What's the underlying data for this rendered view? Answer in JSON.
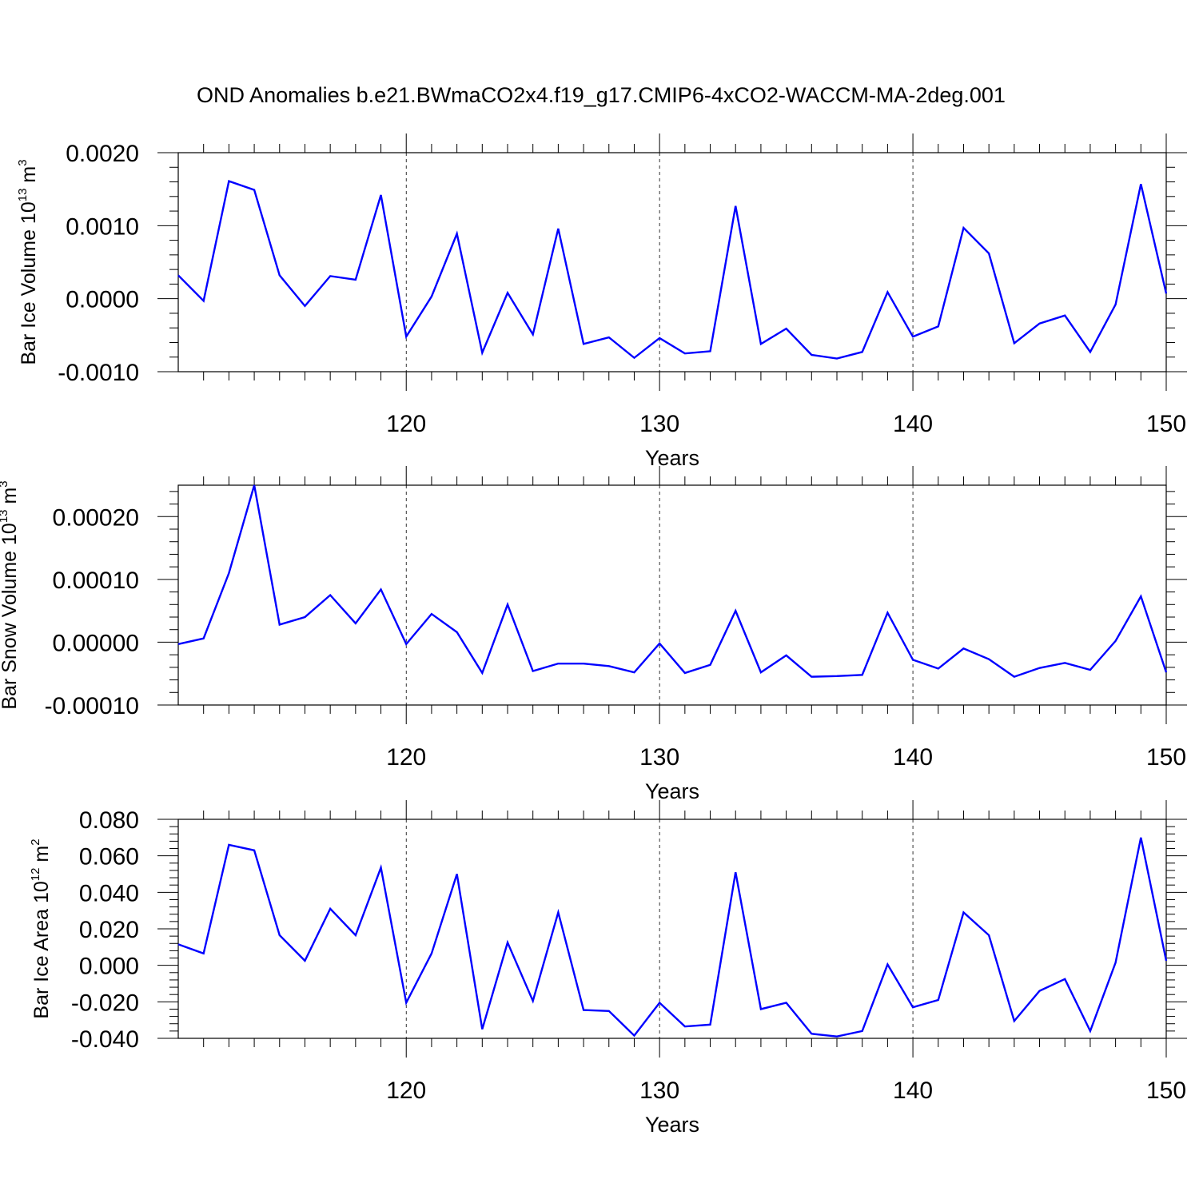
{
  "title": "OND Anomalies b.e21.BWmaCO2x4.f19_g17.CMIP6-4xCO2-WACCM-MA-2deg.001",
  "colors": {
    "line": "#0000ff",
    "axis": "#000000",
    "grid": "#000000"
  },
  "chart_data": [
    {
      "type": "line",
      "ylabel": {
        "text": "Bar Ice Volume 10",
        "sup1": "13",
        "mid": " m",
        "sup2": "3"
      },
      "xlabel": "Years",
      "xlim": [
        111,
        150
      ],
      "ylim": [
        -0.001,
        0.002
      ],
      "yticks": [
        -0.001,
        0.0,
        0.001,
        0.002
      ],
      "ytick_labels": [
        "-0.0010",
        "0.0000",
        "0.0010",
        "0.0020"
      ],
      "xticks": [
        120,
        130,
        140,
        150
      ],
      "xtick_labels": [
        "120",
        "130",
        "140",
        "150"
      ],
      "grid_x": [
        120,
        130,
        140
      ],
      "series": [
        {
          "x": [
            111,
            112,
            113,
            114,
            115,
            116,
            117,
            118,
            119,
            120,
            121,
            122,
            123,
            124,
            125,
            126,
            127,
            128,
            129,
            130,
            131,
            132,
            133,
            134,
            135,
            136,
            137,
            138,
            139,
            140,
            141,
            142,
            143,
            144,
            145,
            146,
            147,
            148,
            149,
            150
          ],
          "values": [
            0.00032,
            -3e-05,
            0.00161,
            0.00149,
            0.00032,
            -0.0001,
            0.00031,
            0.00026,
            0.00142,
            -0.00052,
            3e-05,
            0.00089,
            -0.00074,
            8e-05,
            -0.00049,
            0.00096,
            -0.00062,
            -0.00053,
            -0.00081,
            -0.00054,
            -0.00075,
            -0.00072,
            0.00127,
            -0.00062,
            -0.00041,
            -0.00077,
            -0.00082,
            -0.00073,
            9e-05,
            -0.00052,
            -0.00038,
            0.00097,
            0.00062,
            -0.00061,
            -0.00034,
            -0.00023,
            -0.00073,
            -8e-05,
            0.00157,
            7e-05
          ]
        }
      ]
    },
    {
      "type": "line",
      "ylabel": {
        "text": "Bar Snow Volume 10",
        "sup1": "13",
        "mid": " m",
        "sup2": "3"
      },
      "xlabel": "Years",
      "xlim": [
        111,
        150
      ],
      "ylim": [
        -0.0001,
        0.00025
      ],
      "yticks": [
        -0.0001,
        0.0,
        0.0001,
        0.0002
      ],
      "ytick_labels": [
        "-0.00010",
        "0.00000",
        "0.00010",
        "0.00020"
      ],
      "xticks": [
        120,
        130,
        140,
        150
      ],
      "xtick_labels": [
        "120",
        "130",
        "140",
        "150"
      ],
      "grid_x": [
        120,
        130,
        140
      ],
      "series": [
        {
          "x": [
            111,
            112,
            113,
            114,
            115,
            116,
            117,
            118,
            119,
            120,
            121,
            122,
            123,
            124,
            125,
            126,
            127,
            128,
            129,
            130,
            131,
            132,
            133,
            134,
            135,
            136,
            137,
            138,
            139,
            140,
            141,
            142,
            143,
            144,
            145,
            146,
            147,
            148,
            149,
            150
          ],
          "values": [
            -3e-06,
            6e-06,
            0.00011,
            0.00025,
            2.8e-05,
            4e-05,
            7.5e-05,
            3e-05,
            8.4e-05,
            -3e-06,
            4.5e-05,
            1.6e-05,
            -4.9e-05,
            6e-05,
            -4.6e-05,
            -3.4e-05,
            -3.4e-05,
            -3.8e-05,
            -4.8e-05,
            -2e-06,
            -4.9e-05,
            -3.6e-05,
            5e-05,
            -4.8e-05,
            -2.1e-05,
            -5.5e-05,
            -5.4e-05,
            -5.2e-05,
            4.7e-05,
            -2.8e-05,
            -4.2e-05,
            -1e-05,
            -2.7e-05,
            -5.5e-05,
            -4.1e-05,
            -3.3e-05,
            -4.4e-05,
            2e-06,
            7.3e-05,
            -4.8e-05
          ]
        }
      ]
    },
    {
      "type": "line",
      "ylabel": {
        "text": "Bar Ice Area 10",
        "sup1": "12",
        "mid": " m",
        "sup2": "2"
      },
      "xlabel": "Years",
      "xlim": [
        111,
        150
      ],
      "ylim": [
        -0.04,
        0.08
      ],
      "yticks": [
        -0.04,
        -0.02,
        0.0,
        0.02,
        0.04,
        0.06,
        0.08
      ],
      "ytick_labels": [
        "-0.040",
        "-0.020",
        "0.000",
        "0.020",
        "0.040",
        "0.060",
        "0.080"
      ],
      "xticks": [
        120,
        130,
        140,
        150
      ],
      "xtick_labels": [
        "120",
        "130",
        "140",
        "150"
      ],
      "grid_x": [
        120,
        130,
        140
      ],
      "series": [
        {
          "x": [
            111,
            112,
            113,
            114,
            115,
            116,
            117,
            118,
            119,
            120,
            121,
            122,
            123,
            124,
            125,
            126,
            127,
            128,
            129,
            130,
            131,
            132,
            133,
            134,
            135,
            136,
            137,
            138,
            139,
            140,
            141,
            142,
            143,
            144,
            145,
            146,
            147,
            148,
            149,
            150
          ],
          "values": [
            0.0115,
            0.0065,
            0.066,
            0.063,
            0.0165,
            0.0025,
            0.031,
            0.0165,
            0.0535,
            -0.0205,
            0.0065,
            0.05,
            -0.035,
            0.0125,
            -0.0195,
            0.029,
            -0.0245,
            -0.025,
            -0.0385,
            -0.0205,
            -0.0335,
            -0.0325,
            0.051,
            -0.024,
            -0.0205,
            -0.0375,
            -0.039,
            -0.036,
            0.0005,
            -0.023,
            -0.019,
            0.029,
            0.0165,
            -0.0305,
            -0.014,
            -0.0075,
            -0.036,
            0.0015,
            0.07,
            0.0025
          ]
        }
      ]
    }
  ]
}
